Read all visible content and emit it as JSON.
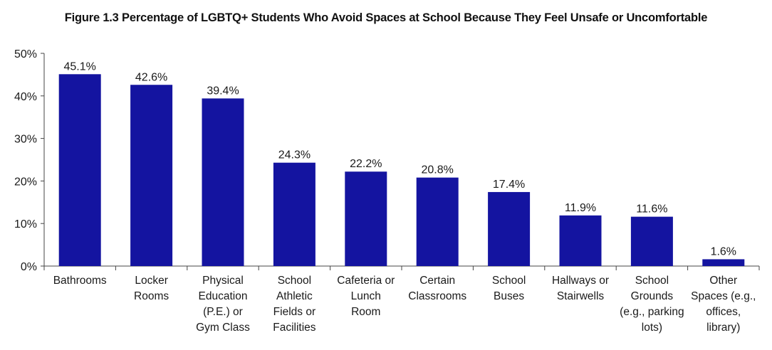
{
  "chart_data": {
    "type": "bar",
    "title": "Figure 1.3 Percentage of LGBTQ+ Students Who Avoid Spaces at School Because They Feel Unsafe or Uncomfortable",
    "categories": [
      [
        "Bathrooms"
      ],
      [
        "Locker",
        "Rooms"
      ],
      [
        "Physical",
        "Education",
        "(P.E.) or",
        "Gym Class"
      ],
      [
        "School",
        "Athletic",
        "Fields or",
        "Facilities"
      ],
      [
        "Cafeteria or",
        "Lunch",
        "Room"
      ],
      [
        "Certain",
        "Classrooms"
      ],
      [
        "School",
        "Buses"
      ],
      [
        "Hallways or",
        "Stairwells"
      ],
      [
        "School",
        "Grounds",
        "(e.g., parking",
        "lots)"
      ],
      [
        "Other",
        "Spaces (e.g.,",
        "offices,",
        "library)"
      ]
    ],
    "values": [
      45.1,
      42.6,
      39.4,
      24.3,
      22.2,
      20.8,
      17.4,
      11.9,
      11.6,
      1.6
    ],
    "value_labels": [
      "45.1%",
      "42.6%",
      "39.4%",
      "24.3%",
      "22.2%",
      "20.8%",
      "17.4%",
      "11.9%",
      "11.6%",
      "1.6%"
    ],
    "yticks": [
      0,
      10,
      20,
      30,
      40,
      50
    ],
    "ytick_labels": [
      "0%",
      "10%",
      "20%",
      "30%",
      "40%",
      "50%"
    ],
    "ylim": [
      0,
      50
    ],
    "xlabel": "",
    "ylabel": "",
    "grid": false,
    "bar_color": "#1414a0"
  }
}
